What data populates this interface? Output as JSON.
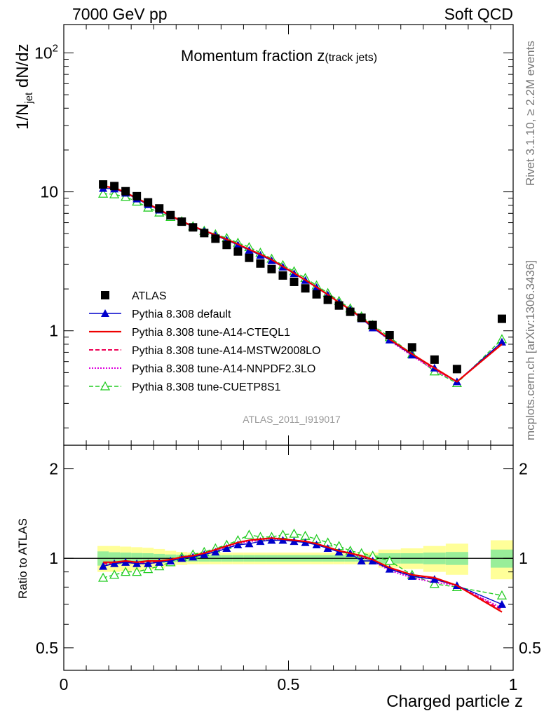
{
  "header": {
    "left": "7000 GeV pp",
    "right": "Soft QCD"
  },
  "side_labels": {
    "rivet": "Rivet 3.1.10, ≥ 2.2M events",
    "mcplots": "mcplots.cern.ch [arXiv:1306.3436]"
  },
  "watermark": "ATLAS_2011_I919017",
  "colors": {
    "atlas": "#000000",
    "default": "#0000cc",
    "cteql1": "#ee0000",
    "mstw": "#ee0055",
    "nnpdf": "#dd00dd",
    "cuetp8s1": "#22cc22",
    "band_outer": "#ffff99",
    "band_inner": "#99ee99"
  },
  "chart_data": [
    {
      "type": "line",
      "title": "Momentum fraction z(track jets)",
      "title_main": "Momentum fraction z",
      "title_sub": "(track jets)",
      "ylabel": "1/N_jet dN/dz",
      "ylabel_parts": {
        "a": "1/N",
        "sub": "jet",
        "b": " dN/dz"
      },
      "yscale": "log",
      "xlim": [
        0,
        1
      ],
      "ylim": [
        0.15,
        160
      ],
      "y_ticks": [
        {
          "value": 100,
          "base": "10",
          "exp": "2"
        },
        {
          "value": 10,
          "label": "10"
        },
        {
          "value": 1,
          "label": "1"
        }
      ],
      "legend_position": "lower-left",
      "x": [
        0.0875,
        0.1125,
        0.1375,
        0.1625,
        0.1875,
        0.2125,
        0.2375,
        0.2625,
        0.2875,
        0.3125,
        0.3375,
        0.3625,
        0.3875,
        0.4125,
        0.4375,
        0.4625,
        0.4875,
        0.5125,
        0.5375,
        0.5625,
        0.5875,
        0.6125,
        0.6375,
        0.6625,
        0.6875,
        0.725,
        0.775,
        0.825,
        0.875,
        0.975
      ],
      "series": [
        {
          "name": "ATLAS",
          "key": "atlas",
          "style": "marker-square",
          "values": [
            11.3,
            11.0,
            10.1,
            9.3,
            8.4,
            7.6,
            6.8,
            6.1,
            5.55,
            5.05,
            4.6,
            4.15,
            3.72,
            3.35,
            3.05,
            2.78,
            2.5,
            2.25,
            2.02,
            1.83,
            1.67,
            1.52,
            1.37,
            1.24,
            1.1,
            0.93,
            0.76,
            0.62,
            0.53,
            1.22
          ]
        },
        {
          "name": "Pythia 8.308 default",
          "key": "default",
          "style": "line-triangle",
          "values": [
            10.6,
            10.5,
            9.8,
            8.9,
            8.1,
            7.4,
            6.7,
            6.1,
            5.6,
            5.2,
            4.85,
            4.5,
            4.15,
            3.8,
            3.5,
            3.2,
            2.88,
            2.58,
            2.31,
            2.05,
            1.81,
            1.6,
            1.42,
            1.22,
            1.05,
            0.86,
            0.67,
            0.54,
            0.43,
            0.83
          ]
        },
        {
          "name": "Pythia 8.308 tune-A14-CTEQL1",
          "key": "cteql1",
          "style": "line-solid",
          "values": [
            11.0,
            10.7,
            9.9,
            9.0,
            8.2,
            7.45,
            6.75,
            6.15,
            5.65,
            5.25,
            4.9,
            4.55,
            4.2,
            3.85,
            3.55,
            3.25,
            2.9,
            2.6,
            2.32,
            2.06,
            1.82,
            1.6,
            1.42,
            1.24,
            1.07,
            0.87,
            0.68,
            0.54,
            0.43,
            0.8
          ]
        },
        {
          "name": "Pythia 8.308 tune-A14-MSTW2008LO",
          "key": "mstw",
          "style": "line-dashed",
          "values": [
            10.9,
            10.6,
            9.85,
            8.95,
            8.15,
            7.4,
            6.75,
            6.15,
            5.65,
            5.25,
            4.9,
            4.55,
            4.2,
            3.85,
            3.55,
            3.25,
            2.9,
            2.6,
            2.32,
            2.06,
            1.82,
            1.6,
            1.42,
            1.24,
            1.07,
            0.86,
            0.67,
            0.53,
            0.43,
            0.81
          ]
        },
        {
          "name": "Pythia 8.308 tune-A14-NNPDF2.3LO",
          "key": "nnpdf",
          "style": "line-dotted",
          "values": [
            10.7,
            10.6,
            9.8,
            8.95,
            8.1,
            7.4,
            6.7,
            6.1,
            5.65,
            5.25,
            4.9,
            4.55,
            4.2,
            3.85,
            3.55,
            3.25,
            2.9,
            2.6,
            2.32,
            2.06,
            1.82,
            1.6,
            1.42,
            1.24,
            1.07,
            0.85,
            0.66,
            0.52,
            0.43,
            0.82
          ]
        },
        {
          "name": "Pythia 8.308 tune-CUETP8S1",
          "key": "cuetp8s1",
          "style": "line-dashed-open-triangle",
          "values": [
            9.7,
            9.6,
            9.2,
            8.5,
            7.7,
            7.1,
            6.6,
            6.15,
            5.65,
            5.25,
            4.95,
            4.65,
            4.3,
            4.0,
            3.65,
            3.3,
            2.97,
            2.68,
            2.4,
            2.12,
            1.87,
            1.64,
            1.45,
            1.27,
            1.1,
            0.9,
            0.68,
            0.51,
            0.42,
            0.87
          ]
        }
      ]
    },
    {
      "type": "line",
      "ylabel": "Ratio to ATLAS",
      "xlabel": "Charged particle z",
      "yscale": "log",
      "xlim": [
        0,
        1
      ],
      "ylim": [
        0.42,
        2.4
      ],
      "y_ticks": [
        {
          "value": 2,
          "label": "2"
        },
        {
          "value": 1,
          "label": "1"
        },
        {
          "value": 0.5,
          "label": "0.5"
        }
      ],
      "x_ticks": [
        {
          "value": 0,
          "label": "0"
        },
        {
          "value": 0.5,
          "label": "0.5"
        },
        {
          "value": 1,
          "label": "1"
        }
      ],
      "reference_line": 1,
      "bands": {
        "edges": [
          0.075,
          0.1,
          0.125,
          0.15,
          0.175,
          0.2,
          0.225,
          0.25,
          0.275,
          0.3,
          0.325,
          0.35,
          0.375,
          0.4,
          0.425,
          0.45,
          0.475,
          0.5,
          0.525,
          0.55,
          0.575,
          0.6,
          0.625,
          0.65,
          0.675,
          0.7,
          0.75,
          0.8,
          0.85,
          0.9,
          0.95,
          1.0
        ],
        "inner_half": [
          0.055,
          0.048,
          0.045,
          0.042,
          0.04,
          0.035,
          0.03,
          0.027,
          0.025,
          0.025,
          0.025,
          0.025,
          0.025,
          0.025,
          0.025,
          0.025,
          0.025,
          0.025,
          0.025,
          0.025,
          0.025,
          0.025,
          0.025,
          0.025,
          0.025,
          0.04,
          0.04,
          0.045,
          0.05,
          null,
          0.07
        ],
        "outer_half": [
          0.1,
          0.1,
          0.095,
          0.09,
          0.085,
          0.075,
          0.06,
          0.05,
          0.045,
          0.045,
          0.045,
          0.045,
          0.045,
          0.045,
          0.045,
          0.045,
          0.045,
          0.045,
          0.045,
          0.045,
          0.045,
          0.045,
          0.045,
          0.045,
          0.045,
          0.07,
          0.08,
          0.1,
          0.12,
          null,
          0.15
        ]
      },
      "x": [
        0.0875,
        0.1125,
        0.1375,
        0.1625,
        0.1875,
        0.2125,
        0.2375,
        0.2625,
        0.2875,
        0.3125,
        0.3375,
        0.3625,
        0.3875,
        0.4125,
        0.4375,
        0.4625,
        0.4875,
        0.5125,
        0.5375,
        0.5625,
        0.5875,
        0.6125,
        0.6375,
        0.6625,
        0.6875,
        0.725,
        0.775,
        0.825,
        0.875,
        0.975
      ],
      "series": [
        {
          "name": "Pythia 8.308 default",
          "key": "default",
          "style": "line-triangle",
          "values": [
            0.94,
            0.96,
            0.97,
            0.96,
            0.96,
            0.97,
            0.98,
            1.0,
            1.01,
            1.03,
            1.05,
            1.08,
            1.11,
            1.12,
            1.14,
            1.15,
            1.15,
            1.14,
            1.13,
            1.11,
            1.08,
            1.05,
            1.04,
            0.98,
            0.98,
            0.92,
            0.87,
            0.85,
            0.81,
            0.7
          ]
        },
        {
          "name": "Pythia 8.308 tune-A14-CTEQL1",
          "key": "cteql1",
          "style": "line-solid",
          "values": [
            0.97,
            0.97,
            0.98,
            0.97,
            0.98,
            0.98,
            0.99,
            1.01,
            1.02,
            1.04,
            1.07,
            1.1,
            1.13,
            1.15,
            1.16,
            1.17,
            1.16,
            1.15,
            1.14,
            1.12,
            1.09,
            1.06,
            1.04,
            1.02,
            0.99,
            0.93,
            0.88,
            0.86,
            0.81,
            0.66
          ]
        },
        {
          "name": "Pythia 8.308 tune-A14-MSTW2008LO",
          "key": "mstw",
          "style": "line-dashed",
          "values": [
            0.96,
            0.96,
            0.98,
            0.96,
            0.97,
            0.97,
            0.99,
            1.01,
            1.02,
            1.04,
            1.07,
            1.1,
            1.13,
            1.15,
            1.16,
            1.17,
            1.16,
            1.15,
            1.14,
            1.12,
            1.09,
            1.06,
            1.04,
            1.02,
            0.99,
            0.92,
            0.88,
            0.85,
            0.81,
            0.67
          ]
        },
        {
          "name": "Pythia 8.308 tune-A14-NNPDF2.3LO",
          "key": "nnpdf",
          "style": "line-dotted",
          "values": [
            0.95,
            0.96,
            0.97,
            0.96,
            0.96,
            0.97,
            0.99,
            1.0,
            1.02,
            1.04,
            1.06,
            1.09,
            1.12,
            1.14,
            1.15,
            1.16,
            1.15,
            1.15,
            1.14,
            1.12,
            1.09,
            1.06,
            1.04,
            1.01,
            0.98,
            0.91,
            0.86,
            0.83,
            0.81,
            0.68
          ]
        },
        {
          "name": "Pythia 8.308 tune-CUETP8S1",
          "key": "cuetp8s1",
          "style": "line-dashed-open-triangle",
          "values": [
            0.86,
            0.88,
            0.9,
            0.9,
            0.92,
            0.94,
            0.97,
            1.01,
            1.03,
            1.05,
            1.08,
            1.11,
            1.15,
            1.2,
            1.18,
            1.18,
            1.2,
            1.21,
            1.19,
            1.16,
            1.13,
            1.1,
            1.06,
            1.04,
            1.02,
            0.98,
            0.88,
            0.82,
            0.8,
            0.75
          ]
        }
      ]
    }
  ]
}
